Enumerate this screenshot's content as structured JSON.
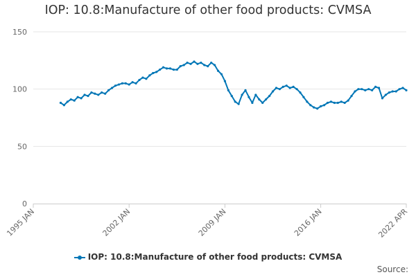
{
  "chart_data": {
    "type": "line",
    "title": "IOP: 10.8:Manufacture of other food products: CVMSA",
    "ylim": [
      0,
      150
    ],
    "yticks": [
      0,
      50,
      100,
      150
    ],
    "xlim": [
      1995.0,
      2022.25
    ],
    "xticks": [
      {
        "value": 1995.0,
        "label": "1995 JAN"
      },
      {
        "value": 2002.0,
        "label": "2002 JAN"
      },
      {
        "value": 2009.0,
        "label": "2009 JAN"
      },
      {
        "value": 2016.0,
        "label": "2016 JAN"
      },
      {
        "value": 2022.25,
        "label": "2022 APR"
      }
    ],
    "series": [
      {
        "name": "IOP: 10.8:Manufacture of other food products: CVMSA",
        "color": "#0076b6",
        "points": [
          [
            1997.0,
            88
          ],
          [
            1997.25,
            86
          ],
          [
            1997.5,
            89
          ],
          [
            1997.75,
            91
          ],
          [
            1998.0,
            90
          ],
          [
            1998.25,
            93
          ],
          [
            1998.5,
            92
          ],
          [
            1998.75,
            95
          ],
          [
            1999.0,
            94
          ],
          [
            1999.25,
            97
          ],
          [
            1999.5,
            96
          ],
          [
            1999.75,
            95
          ],
          [
            2000.0,
            97
          ],
          [
            2000.25,
            96
          ],
          [
            2000.5,
            99
          ],
          [
            2000.75,
            101
          ],
          [
            2001.0,
            103
          ],
          [
            2001.25,
            104
          ],
          [
            2001.5,
            105
          ],
          [
            2001.75,
            105
          ],
          [
            2002.0,
            104
          ],
          [
            2002.25,
            106
          ],
          [
            2002.5,
            105
          ],
          [
            2002.75,
            108
          ],
          [
            2003.0,
            110
          ],
          [
            2003.25,
            109
          ],
          [
            2003.5,
            112
          ],
          [
            2003.75,
            114
          ],
          [
            2004.0,
            115
          ],
          [
            2004.25,
            117
          ],
          [
            2004.5,
            119
          ],
          [
            2004.75,
            118
          ],
          [
            2005.0,
            118
          ],
          [
            2005.25,
            117
          ],
          [
            2005.5,
            117
          ],
          [
            2005.75,
            120
          ],
          [
            2006.0,
            121
          ],
          [
            2006.25,
            123
          ],
          [
            2006.5,
            122
          ],
          [
            2006.75,
            124
          ],
          [
            2007.0,
            122
          ],
          [
            2007.25,
            123
          ],
          [
            2007.5,
            121
          ],
          [
            2007.75,
            120
          ],
          [
            2008.0,
            123
          ],
          [
            2008.25,
            121
          ],
          [
            2008.5,
            116
          ],
          [
            2008.75,
            113
          ],
          [
            2009.0,
            107
          ],
          [
            2009.25,
            99
          ],
          [
            2009.5,
            94
          ],
          [
            2009.75,
            89
          ],
          [
            2010.0,
            87
          ],
          [
            2010.25,
            95
          ],
          [
            2010.5,
            99
          ],
          [
            2010.75,
            93
          ],
          [
            2011.0,
            88
          ],
          [
            2011.25,
            95
          ],
          [
            2011.5,
            91
          ],
          [
            2011.75,
            88
          ],
          [
            2012.0,
            91
          ],
          [
            2012.25,
            94
          ],
          [
            2012.5,
            98
          ],
          [
            2012.75,
            101
          ],
          [
            2013.0,
            100
          ],
          [
            2013.25,
            102
          ],
          [
            2013.5,
            103
          ],
          [
            2013.75,
            101
          ],
          [
            2014.0,
            102
          ],
          [
            2014.25,
            100
          ],
          [
            2014.5,
            97
          ],
          [
            2014.75,
            93
          ],
          [
            2015.0,
            89
          ],
          [
            2015.25,
            86
          ],
          [
            2015.5,
            84
          ],
          [
            2015.75,
            83
          ],
          [
            2016.0,
            85
          ],
          [
            2016.25,
            86
          ],
          [
            2016.5,
            88
          ],
          [
            2016.75,
            89
          ],
          [
            2017.0,
            88
          ],
          [
            2017.25,
            88
          ],
          [
            2017.5,
            89
          ],
          [
            2017.75,
            88
          ],
          [
            2018.0,
            90
          ],
          [
            2018.25,
            94
          ],
          [
            2018.5,
            98
          ],
          [
            2018.75,
            100
          ],
          [
            2019.0,
            100
          ],
          [
            2019.25,
            99
          ],
          [
            2019.5,
            100
          ],
          [
            2019.75,
            99
          ],
          [
            2020.0,
            102
          ],
          [
            2020.25,
            101
          ],
          [
            2020.5,
            92
          ],
          [
            2020.75,
            95
          ],
          [
            2021.0,
            97
          ],
          [
            2021.25,
            98
          ],
          [
            2021.5,
            98
          ],
          [
            2021.75,
            100
          ],
          [
            2022.0,
            101
          ],
          [
            2022.25,
            99
          ]
        ]
      }
    ],
    "legend": "IOP: 10.8:Manufacture of other food products: CVMSA",
    "source_label": "Source:"
  }
}
